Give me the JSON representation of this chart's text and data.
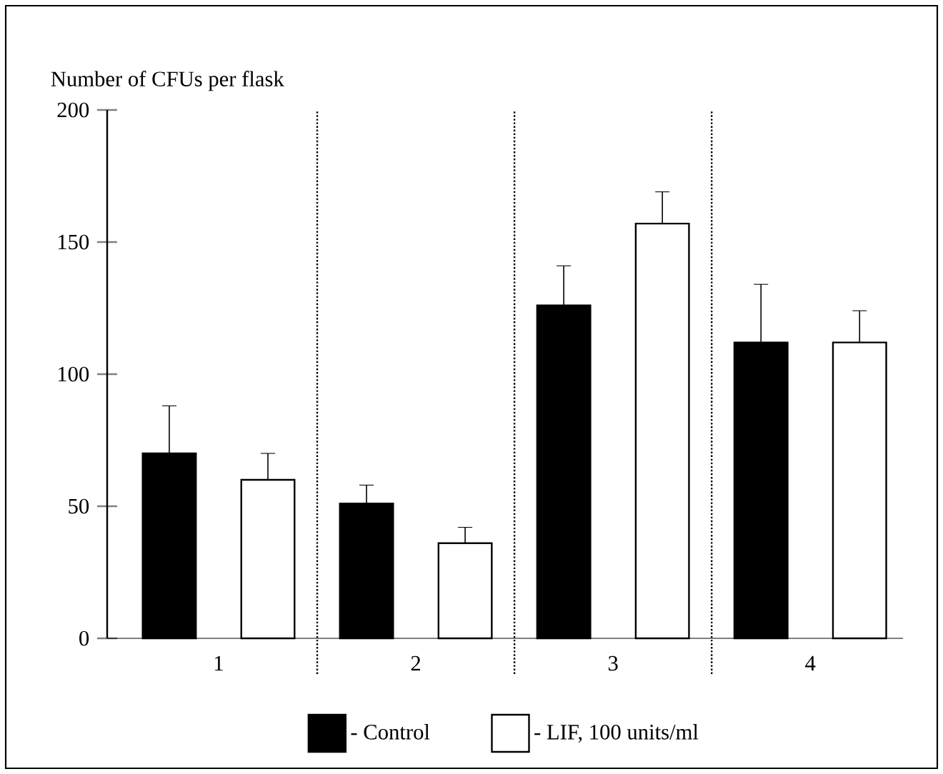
{
  "chart_data": {
    "type": "bar",
    "ylabel": "Number of CFUs per flask",
    "categories": [
      "1",
      "2",
      "3",
      "4"
    ],
    "series": [
      {
        "name": "- Control",
        "color": "#000000",
        "values": [
          70,
          51,
          126,
          112
        ],
        "errors": [
          [
            70,
            88
          ],
          [
            51,
            58
          ],
          [
            126,
            141
          ],
          [
            112,
            134
          ]
        ]
      },
      {
        "name": "- LIF, 100 units/ml",
        "color": "#ffffff",
        "values": [
          60,
          36,
          157,
          112
        ],
        "errors": [
          [
            60,
            70
          ],
          [
            36,
            42
          ],
          [
            157,
            169
          ],
          [
            112,
            124
          ]
        ]
      }
    ],
    "ylim": [
      0,
      200
    ],
    "yticks": [
      0,
      50,
      100,
      150,
      200
    ],
    "grid": false,
    "legend": "bottom"
  }
}
